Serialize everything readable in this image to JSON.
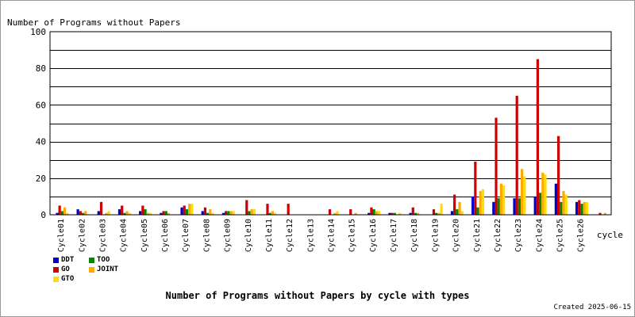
{
  "chart_data": {
    "type": "bar",
    "title": "Number of Programs without Papers by cycle with types",
    "ylabel": "Number of Programs without Papers",
    "xlabel": "cycle",
    "ylim": [
      0,
      100
    ],
    "yticks": [
      0,
      20,
      40,
      60,
      80,
      100
    ],
    "grid": true,
    "legend_position": "bottom-left",
    "categories": [
      "Cycle01",
      "Cycle02",
      "Cycle03",
      "Cycle04",
      "Cycle05",
      "Cycle06",
      "Cycle07",
      "Cycle08",
      "Cycle09",
      "Cycle10",
      "Cycle11",
      "Cycle12",
      "Cycle13",
      "Cycle14",
      "Cycle15",
      "Cycle16",
      "Cycle17",
      "Cycle18",
      "Cycle19",
      "Cycle20",
      "Cycle21",
      "Cycle22",
      "Cycle23",
      "Cycle24",
      "Cycle25",
      "Cycle26",
      ""
    ],
    "series": [
      {
        "name": "DDT",
        "color": "#0000cc",
        "values": [
          1,
          3,
          2,
          3,
          2,
          1,
          4,
          2,
          1,
          0,
          0,
          0,
          0,
          0,
          0,
          1,
          1,
          1,
          0,
          2,
          10,
          7,
          9,
          10,
          17,
          7,
          0
        ]
      },
      {
        "name": "GO",
        "color": "#cc0000",
        "values": [
          5,
          2,
          7,
          5,
          5,
          2,
          5,
          4,
          2,
          8,
          6,
          6,
          0,
          3,
          3,
          4,
          1,
          4,
          3,
          11,
          29,
          53,
          65,
          85,
          43,
          8,
          1
        ]
      },
      {
        "name": "TOO",
        "color": "#008800",
        "values": [
          2,
          1,
          0,
          1,
          3,
          2,
          3,
          1,
          2,
          2,
          1,
          0,
          0,
          0,
          0,
          3,
          1,
          1,
          1,
          3,
          4,
          9,
          9,
          12,
          7,
          6,
          0
        ]
      },
      {
        "name": "JOINT",
        "color": "#ffaa00",
        "values": [
          4,
          2,
          1,
          2,
          1,
          1,
          6,
          3,
          2,
          3,
          2,
          0,
          0,
          1,
          1,
          2,
          0,
          1,
          1,
          7,
          13,
          17,
          25,
          23,
          13,
          7,
          1
        ]
      },
      {
        "name": "GTO",
        "color": "#ffdd00",
        "values": [
          1,
          0,
          2,
          1,
          1,
          0,
          6,
          1,
          2,
          3,
          1,
          0,
          0,
          2,
          0,
          2,
          1,
          0,
          6,
          2,
          14,
          16,
          21,
          22,
          11,
          7,
          0
        ]
      }
    ]
  },
  "footer": {
    "created": "Created 2025-06-15"
  }
}
